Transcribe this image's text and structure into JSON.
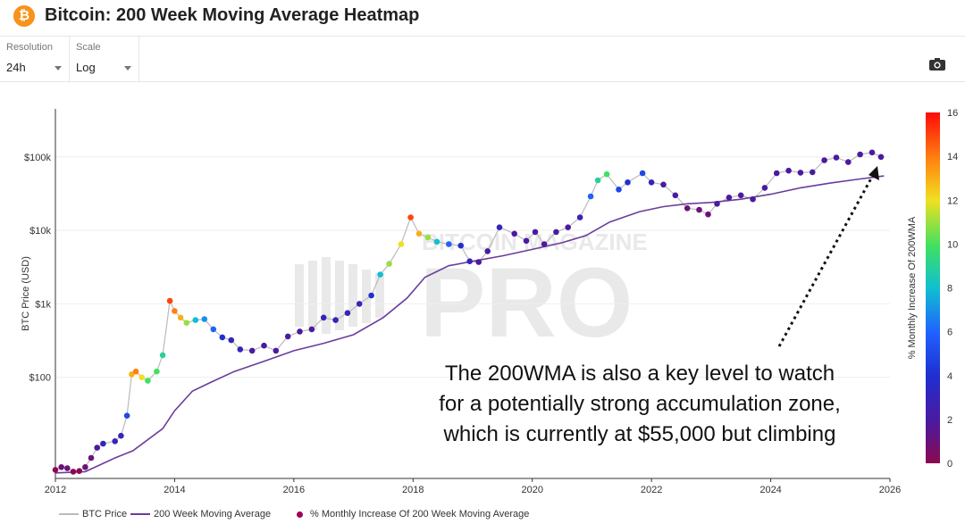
{
  "header": {
    "title": "Bitcoin: 200 Week Moving Average Heatmap",
    "logo_symbol": "₿"
  },
  "controls": {
    "resolution": {
      "label": "Resolution",
      "value": "24h"
    },
    "scale": {
      "label": "Scale",
      "value": "Log"
    }
  },
  "toolbar": {
    "camera_icon": "camera-icon"
  },
  "annotation": {
    "lines": [
      "The 200WMA is also a key level to watch",
      "for a potentially strong accumulation zone,",
      "which is currently at $55,000 but climbing"
    ]
  },
  "watermark": {
    "top": "BITCOIN MAGAZINE",
    "big": "PRO"
  },
  "legend": {
    "items": [
      {
        "label": "BTC Price",
        "color": "#bbbbbb"
      },
      {
        "label": "200 Week Moving Average",
        "color": "#6a3d9a"
      },
      {
        "label": "% Monthly Increase Of 200 Week Moving Average",
        "color": "#a0005a"
      }
    ]
  },
  "chart_data": {
    "type": "scatter",
    "title": "Bitcoin: 200 Week Moving Average Heatmap",
    "xlabel": "",
    "ylabel": "BTC Price (USD)",
    "yscale": "log",
    "xlim": [
      2012,
      2026
    ],
    "ylim": [
      4.2,
      450000
    ],
    "x_ticks": [
      "2012",
      "2014",
      "2016",
      "2018",
      "2020",
      "2022",
      "2024",
      "2026"
    ],
    "y_ticks": [
      {
        "value": 100,
        "label": "$100"
      },
      {
        "value": 1000,
        "label": "$1k"
      },
      {
        "value": 10000,
        "label": "$10k"
      },
      {
        "value": 100000,
        "label": "$100k"
      }
    ],
    "colorbar": {
      "label": "% Monthly Increase Of 200WMA",
      "min": 0,
      "max": 16,
      "ticks": [
        0,
        2,
        4,
        6,
        8,
        10,
        12,
        14,
        16
      ]
    },
    "price_points": [
      [
        2012.0,
        5.5,
        0
      ],
      [
        2012.1,
        6.0,
        1
      ],
      [
        2012.2,
        5.8,
        1
      ],
      [
        2012.3,
        5.2,
        0
      ],
      [
        2012.4,
        5.3,
        0
      ],
      [
        2012.5,
        6.0,
        1
      ],
      [
        2012.6,
        8.0,
        1
      ],
      [
        2012.7,
        11.0,
        2
      ],
      [
        2012.8,
        12.5,
        3
      ],
      [
        2013.0,
        13.5,
        3
      ],
      [
        2013.1,
        16.0,
        3
      ],
      [
        2013.2,
        30.0,
        5
      ],
      [
        2013.28,
        110.0,
        13
      ],
      [
        2013.35,
        120.0,
        14
      ],
      [
        2013.45,
        100.0,
        12
      ],
      [
        2013.55,
        90.0,
        10
      ],
      [
        2013.7,
        120.0,
        10
      ],
      [
        2013.8,
        200.0,
        9
      ],
      [
        2013.92,
        1100.0,
        15
      ],
      [
        2014.0,
        800.0,
        14
      ],
      [
        2014.1,
        650.0,
        13
      ],
      [
        2014.2,
        550.0,
        11
      ],
      [
        2014.35,
        600.0,
        8
      ],
      [
        2014.5,
        620.0,
        7
      ],
      [
        2014.65,
        450.0,
        6
      ],
      [
        2014.8,
        350.0,
        4
      ],
      [
        2014.95,
        320.0,
        3
      ],
      [
        2015.1,
        240.0,
        3
      ],
      [
        2015.3,
        230.0,
        2
      ],
      [
        2015.5,
        270.0,
        2
      ],
      [
        2015.7,
        230.0,
        2
      ],
      [
        2015.9,
        360.0,
        2
      ],
      [
        2016.1,
        420.0,
        2
      ],
      [
        2016.3,
        450.0,
        2
      ],
      [
        2016.5,
        650.0,
        3
      ],
      [
        2016.7,
        600.0,
        3
      ],
      [
        2016.9,
        750.0,
        3
      ],
      [
        2017.1,
        1000.0,
        3
      ],
      [
        2017.3,
        1300.0,
        4
      ],
      [
        2017.45,
        2500.0,
        8
      ],
      [
        2017.6,
        3500.0,
        11
      ],
      [
        2017.8,
        6500.0,
        12
      ],
      [
        2017.96,
        15000.0,
        15
      ],
      [
        2018.1,
        9000.0,
        13
      ],
      [
        2018.25,
        8000.0,
        11
      ],
      [
        2018.4,
        7000.0,
        8
      ],
      [
        2018.6,
        6500.0,
        6
      ],
      [
        2018.8,
        6200.0,
        4
      ],
      [
        2018.95,
        3800.0,
        3
      ],
      [
        2019.1,
        3700.0,
        2
      ],
      [
        2019.25,
        5200.0,
        2
      ],
      [
        2019.45,
        11000.0,
        3
      ],
      [
        2019.7,
        9000.0,
        2
      ],
      [
        2019.9,
        7200.0,
        2
      ],
      [
        2020.05,
        9500.0,
        2
      ],
      [
        2020.2,
        6500.0,
        2
      ],
      [
        2020.4,
        9500.0,
        2
      ],
      [
        2020.6,
        11000.0,
        2
      ],
      [
        2020.8,
        15000.0,
        3
      ],
      [
        2020.98,
        29000.0,
        6
      ],
      [
        2021.1,
        48000.0,
        9
      ],
      [
        2021.25,
        58000.0,
        10
      ],
      [
        2021.45,
        36000.0,
        5
      ],
      [
        2021.6,
        45000.0,
        4
      ],
      [
        2021.85,
        60000.0,
        5
      ],
      [
        2022.0,
        45000.0,
        3
      ],
      [
        2022.2,
        42000.0,
        2
      ],
      [
        2022.4,
        30000.0,
        2
      ],
      [
        2022.6,
        20000.0,
        1
      ],
      [
        2022.8,
        19000.0,
        1
      ],
      [
        2022.95,
        16500.0,
        1
      ],
      [
        2023.1,
        23000.0,
        2
      ],
      [
        2023.3,
        28000.0,
        2
      ],
      [
        2023.5,
        30000.0,
        2
      ],
      [
        2023.7,
        26500.0,
        2
      ],
      [
        2023.9,
        38000.0,
        2
      ],
      [
        2024.1,
        60000.0,
        2
      ],
      [
        2024.3,
        65000.0,
        2
      ],
      [
        2024.5,
        61000.0,
        2
      ],
      [
        2024.7,
        62000.0,
        2
      ],
      [
        2024.9,
        90000.0,
        2
      ],
      [
        2025.1,
        98000.0,
        2
      ],
      [
        2025.3,
        85000.0,
        2
      ],
      [
        2025.5,
        108000.0,
        2
      ],
      [
        2025.7,
        115000.0,
        2
      ],
      [
        2025.85,
        100000.0,
        2
      ]
    ],
    "wma_points": [
      [
        2012.0,
        5.0
      ],
      [
        2012.5,
        5.2
      ],
      [
        2013.0,
        8.0
      ],
      [
        2013.3,
        10.0
      ],
      [
        2013.8,
        20.0
      ],
      [
        2014.0,
        35.0
      ],
      [
        2014.3,
        65.0
      ],
      [
        2014.6,
        85.0
      ],
      [
        2015.0,
        120.0
      ],
      [
        2015.5,
        165.0
      ],
      [
        2016.0,
        230.0
      ],
      [
        2016.5,
        290.0
      ],
      [
        2017.0,
        380.0
      ],
      [
        2017.5,
        650.0
      ],
      [
        2017.9,
        1200.0
      ],
      [
        2018.2,
        2300.0
      ],
      [
        2018.6,
        3300.0
      ],
      [
        2019.0,
        3800.0
      ],
      [
        2019.5,
        4500.0
      ],
      [
        2020.0,
        5500.0
      ],
      [
        2020.5,
        6800.0
      ],
      [
        2020.9,
        8500.0
      ],
      [
        2021.3,
        13000.0
      ],
      [
        2021.8,
        18000.0
      ],
      [
        2022.2,
        21000.0
      ],
      [
        2022.6,
        23000.0
      ],
      [
        2023.0,
        24000.0
      ],
      [
        2023.5,
        26500.0
      ],
      [
        2024.0,
        31000.0
      ],
      [
        2024.5,
        38000.0
      ],
      [
        2025.0,
        44000.0
      ],
      [
        2025.5,
        50000.0
      ],
      [
        2025.9,
        55000.0
      ]
    ]
  }
}
